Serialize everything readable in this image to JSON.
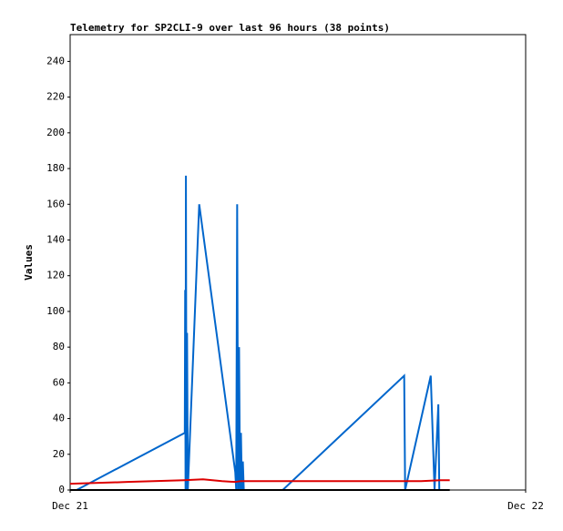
{
  "chart_data": {
    "type": "line",
    "title": "Telemetry for SP2CLI-9 over last 96 hours (38 points)",
    "y_label": "Values",
    "xlim": [
      0,
      24
    ],
    "xticks": [
      {
        "value": 0,
        "label": "Dec 21"
      },
      {
        "value": 24,
        "label": "Dec 22"
      }
    ],
    "ylim": [
      0,
      255
    ],
    "yticks": [
      0,
      20,
      40,
      60,
      80,
      100,
      120,
      140,
      160,
      180,
      200,
      220,
      240
    ],
    "grid": false,
    "series": [
      {
        "color": "#0066cc",
        "x": [
          0.34,
          6.04,
          6.06,
          6.08,
          6.1,
          6.13,
          6.16,
          6.2,
          6.8,
          8.7,
          8.75,
          8.8,
          8.85,
          8.9,
          8.95,
          9.0,
          9.05,
          9.1,
          9.15,
          11.2,
          17.6,
          17.65,
          19.0,
          19.2,
          19.4,
          19.45
        ],
        "values": [
          0,
          32,
          112,
          0,
          176,
          0,
          88,
          0,
          160,
          10,
          0,
          160,
          0,
          80,
          0,
          32,
          0,
          16,
          0,
          0,
          64,
          0,
          64,
          0,
          48,
          0
        ]
      },
      {
        "color": "#dd0000",
        "x": [
          0,
          3,
          6,
          7,
          8,
          8.7,
          9,
          17.6,
          18.5,
          19.5,
          20
        ],
        "values": [
          3.5,
          4.5,
          5.5,
          6,
          5,
          4.5,
          5,
          5,
          5,
          5.5,
          5.5
        ]
      },
      {
        "color": "#000000",
        "x": [
          0,
          20
        ],
        "values": [
          0,
          0
        ]
      }
    ]
  }
}
